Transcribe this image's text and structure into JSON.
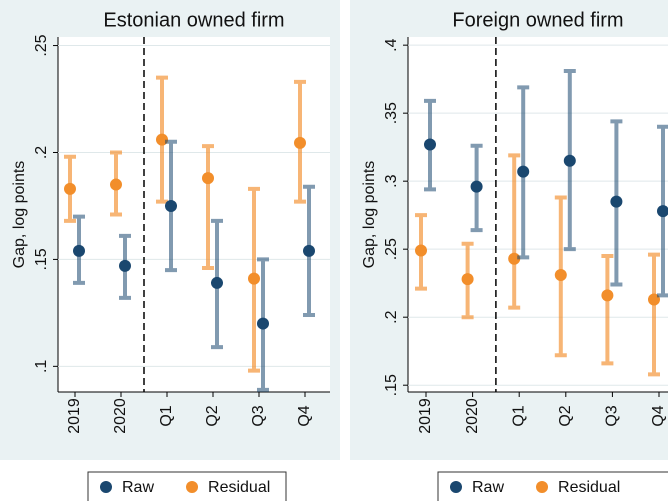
{
  "chart_data": [
    {
      "type": "errorbar",
      "title": "Estonian owned firm",
      "y_label": "Gap, log points",
      "categories": [
        "2019",
        "2020",
        "Q1",
        "Q2",
        "Q3",
        "Q4"
      ],
      "series": [
        {
          "name": "Raw",
          "color": "#1a476f",
          "values": [
            0.154,
            0.147,
            0.175,
            0.139,
            0.12,
            0.154
          ],
          "lower": [
            0.139,
            0.132,
            0.145,
            0.109,
            0.089,
            0.124
          ],
          "upper": [
            0.17,
            0.161,
            0.205,
            0.168,
            0.15,
            0.184
          ]
        },
        {
          "name": "Residual",
          "color": "#f28e2b",
          "values": [
            0.183,
            0.185,
            0.206,
            0.188,
            0.141,
            0.2045
          ],
          "lower": [
            0.168,
            0.171,
            0.177,
            0.146,
            0.098,
            0.177
          ],
          "upper": [
            0.198,
            0.2,
            0.235,
            0.203,
            0.183,
            0.233
          ]
        }
      ],
      "ylim": [
        0.088,
        0.254
      ],
      "yticks": [
        {
          "value": 0.1,
          "label": ".1"
        },
        {
          "value": 0.15,
          "label": ".15"
        },
        {
          "value": 0.2,
          "label": ".2"
        },
        {
          "value": 0.25,
          "label": ".25"
        }
      ],
      "grid": true
    },
    {
      "type": "errorbar",
      "title": "Foreign owned firm",
      "y_label": "Gap, log points",
      "categories": [
        "2019",
        "2020",
        "Q1",
        "Q2",
        "Q3",
        "Q4"
      ],
      "series": [
        {
          "name": "Raw",
          "color": "#1a476f",
          "values": [
            0.327,
            0.296,
            0.307,
            0.315,
            0.285,
            0.278
          ],
          "lower": [
            0.294,
            0.264,
            0.244,
            0.25,
            0.224,
            0.216
          ],
          "upper": [
            0.359,
            0.326,
            0.369,
            0.381,
            0.344,
            0.34
          ]
        },
        {
          "name": "Residual",
          "color": "#f28e2b",
          "values": [
            0.249,
            0.228,
            0.243,
            0.231,
            0.216,
            0.213
          ],
          "lower": [
            0.221,
            0.2,
            0.207,
            0.172,
            0.166,
            0.158
          ],
          "upper": [
            0.275,
            0.254,
            0.319,
            0.288,
            0.245,
            0.246
          ]
        }
      ],
      "ylim": [
        0.145,
        0.406
      ],
      "yticks": [
        {
          "value": 0.15,
          "label": ".15"
        },
        {
          "value": 0.2,
          "label": ".2"
        },
        {
          "value": 0.25,
          "label": ".25"
        },
        {
          "value": 0.3,
          "label": ".3"
        },
        {
          "value": 0.35,
          "label": ".35"
        },
        {
          "value": 0.4,
          "label": ".4"
        }
      ],
      "grid": true
    }
  ]
}
